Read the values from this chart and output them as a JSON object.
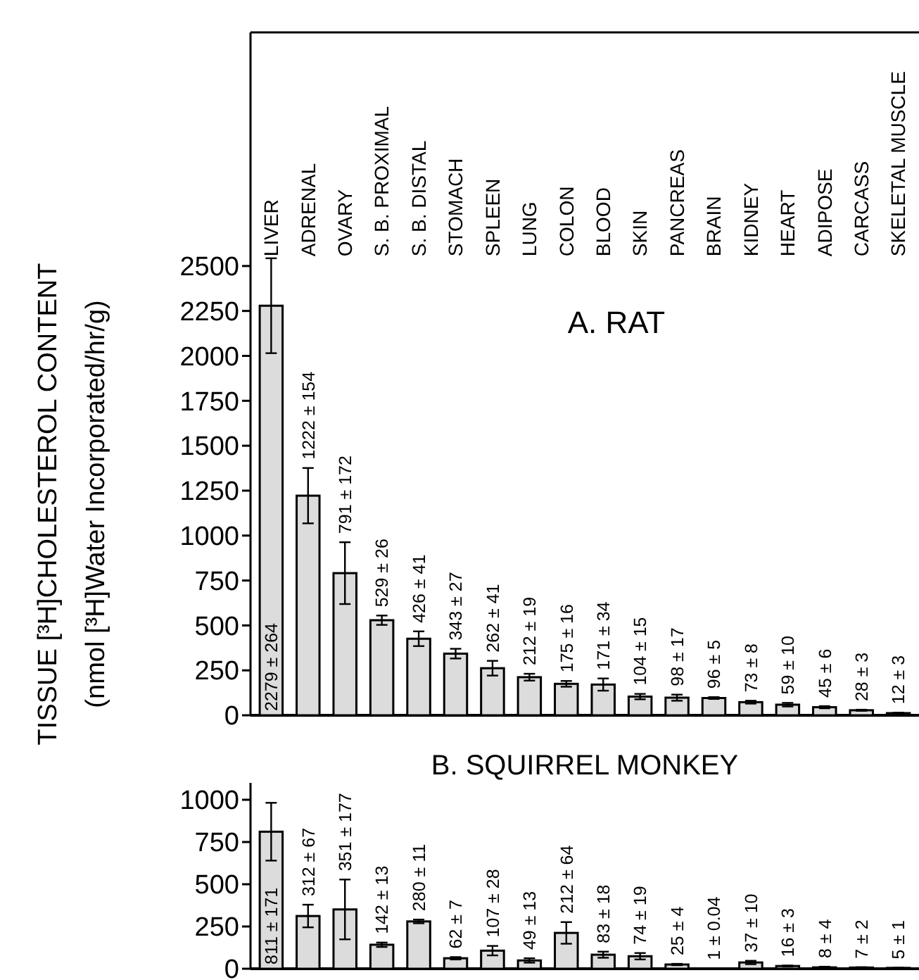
{
  "chart_data": [
    {
      "type": "bar",
      "title": "A.  RAT",
      "ylabel": "TISSUE [³H]CHOLESTEROL CONTENT\n(nmol [³H]Water Incorporated/hr/g)",
      "categories": [
        "LIVER",
        "ADRENAL",
        "OVARY",
        "S. B. PROXIMAL",
        "S. B. DISTAL",
        "STOMACH",
        "SPLEEN",
        "LUNG",
        "COLON",
        "BLOOD",
        "SKIN",
        "PANCREAS",
        "BRAIN",
        "KIDNEY",
        "HEART",
        "ADIPOSE",
        "CARCASS",
        "SKELETAL  MUSCLE"
      ],
      "values": [
        2279,
        1222,
        791,
        529,
        426,
        343,
        262,
        212,
        175,
        171,
        104,
        98,
        96,
        73,
        59,
        45,
        28,
        12
      ],
      "errors": [
        264,
        154,
        172,
        26,
        41,
        27,
        41,
        19,
        16,
        34,
        15,
        17,
        5,
        8,
        10,
        6,
        3,
        3
      ],
      "value_labels": [
        "2279 ± 264",
        "1222 ± 154",
        "791 ± 172",
        "529 ± 26",
        "426 ± 41",
        "343 ± 27",
        "262 ± 41",
        "212 ± 19",
        "175 ± 16",
        "171 ± 34",
        "104 ± 15",
        "98 ± 17",
        "96 ± 5",
        "73 ± 8",
        "59 ± 10",
        "45 ± 6",
        "28 ± 3",
        "12 ± 3"
      ],
      "color": "#dcdcdc",
      "ylim": [
        0,
        3800
      ],
      "yticks": [
        0,
        250,
        500,
        750,
        1000,
        1250,
        1500,
        1750,
        2000,
        2250,
        2500
      ]
    },
    {
      "type": "bar",
      "title": "B.  SQUIRREL  MONKEY",
      "tick_labels": "y",
      "categories": [
        null,
        null,
        null,
        null,
        null,
        null,
        null,
        null,
        null,
        null,
        null,
        null,
        null,
        null,
        null,
        null,
        null,
        null
      ],
      "values": [
        811,
        312,
        351,
        142,
        280,
        62,
        107,
        49,
        212,
        83,
        74,
        25,
        1,
        37,
        16,
        8,
        7,
        5
      ],
      "errors": [
        171,
        67,
        177,
        13,
        11,
        7,
        28,
        13,
        64,
        18,
        19,
        4,
        0.04,
        10,
        3,
        4,
        2,
        1
      ],
      "value_labels": [
        "811 ± 171",
        "312 ± 67",
        "351 ± 177",
        "142 ± 13",
        "280 ± 11",
        "62 ± 7",
        "107 ± 28",
        "49 ± 13",
        "212 ± 64",
        "83 ± 18",
        "74 ± 19",
        "25 ± 4",
        "1 ± 0.04",
        "37 ± 10",
        "16 ± 3",
        "8 ± 4",
        "7 ± 2",
        "5 ± 1"
      ],
      "color": "#dcdcdc",
      "ylim": [
        0,
        1100
      ],
      "yticks": [
        0,
        250,
        500,
        750,
        1000
      ]
    }
  ]
}
